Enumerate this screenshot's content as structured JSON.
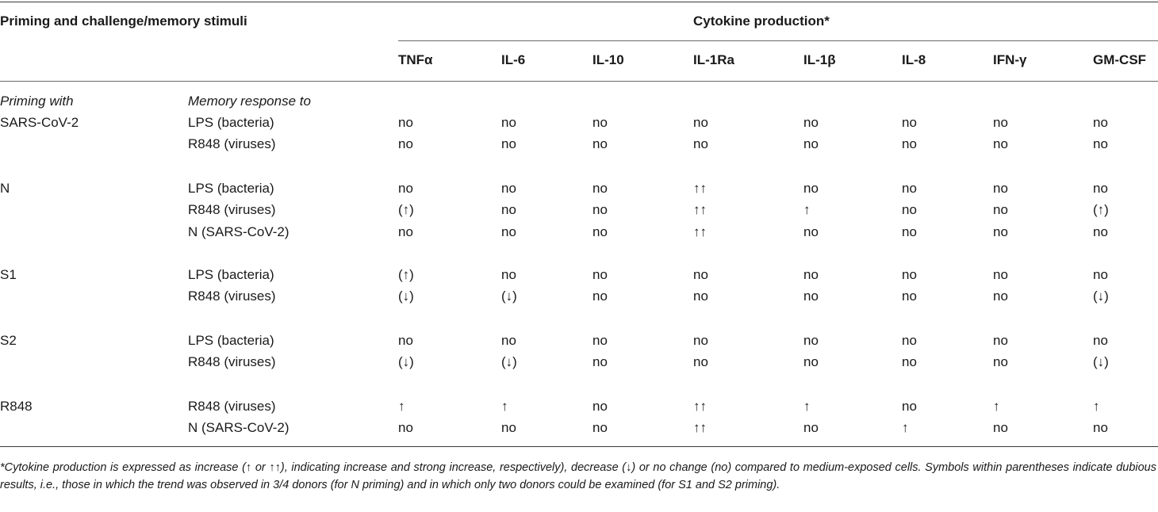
{
  "header": {
    "stimuli_label": "Priming and challenge/memory stimuli",
    "cytokine_label": "Cytokine production*",
    "columns": [
      "TNFα",
      "IL-6",
      "IL-10",
      "IL-1Ra",
      "IL-1β",
      "IL-8",
      "IFN-γ",
      "GM-CSF"
    ]
  },
  "subheader": {
    "priming_label": "Priming with",
    "memory_label": "Memory response to"
  },
  "groups": [
    {
      "priming": "SARS-CoV-2",
      "rows": [
        {
          "stimulus": "LPS (bacteria)",
          "values": [
            "no",
            "no",
            "no",
            "no",
            "no",
            "no",
            "no",
            "no"
          ]
        },
        {
          "stimulus": "R848 (viruses)",
          "values": [
            "no",
            "no",
            "no",
            "no",
            "no",
            "no",
            "no",
            "no"
          ]
        }
      ]
    },
    {
      "priming": "N",
      "rows": [
        {
          "stimulus": "LPS (bacteria)",
          "values": [
            "no",
            "no",
            "no",
            "↑↑",
            "no",
            "no",
            "no",
            "no"
          ]
        },
        {
          "stimulus": "R848 (viruses)",
          "values": [
            "(↑)",
            "no",
            "no",
            "↑↑",
            "↑",
            "no",
            "no",
            "(↑)"
          ]
        },
        {
          "stimulus": "N (SARS-CoV-2)",
          "values": [
            "no",
            "no",
            "no",
            "↑↑",
            "no",
            "no",
            "no",
            "no"
          ]
        }
      ]
    },
    {
      "priming": "S1",
      "rows": [
        {
          "stimulus": "LPS (bacteria)",
          "values": [
            "(↑)",
            "no",
            "no",
            "no",
            "no",
            "no",
            "no",
            "no"
          ]
        },
        {
          "stimulus": "R848 (viruses)",
          "values": [
            "(↓)",
            "(↓)",
            "no",
            "no",
            "no",
            "no",
            "no",
            "(↓)"
          ]
        }
      ]
    },
    {
      "priming": "S2",
      "rows": [
        {
          "stimulus": "LPS (bacteria)",
          "values": [
            "no",
            "no",
            "no",
            "no",
            "no",
            "no",
            "no",
            "no"
          ]
        },
        {
          "stimulus": "R848 (viruses)",
          "values": [
            "(↓)",
            "(↓)",
            "no",
            "no",
            "no",
            "no",
            "no",
            "(↓)"
          ]
        }
      ]
    },
    {
      "priming": "R848",
      "rows": [
        {
          "stimulus": "R848 (viruses)",
          "values": [
            "↑",
            "↑",
            "no",
            "↑↑",
            "↑",
            "no",
            "↑",
            "↑"
          ]
        },
        {
          "stimulus": "N (SARS-CoV-2)",
          "values": [
            "no",
            "no",
            "no",
            "↑↑",
            "no",
            "↑",
            "no",
            "no"
          ]
        }
      ]
    }
  ],
  "footnote": "*Cytokine production is expressed as increase (↑ or ↑↑), indicating increase and strong increase, respectively), decrease (↓) or no change (no) compared to medium-exposed cells. Symbols within parentheses indicate dubious results, i.e., those in which the trend was observed in 3/4 donors (for N priming) and in which only two donors could be examined (for S1 and S2 priming)."
}
